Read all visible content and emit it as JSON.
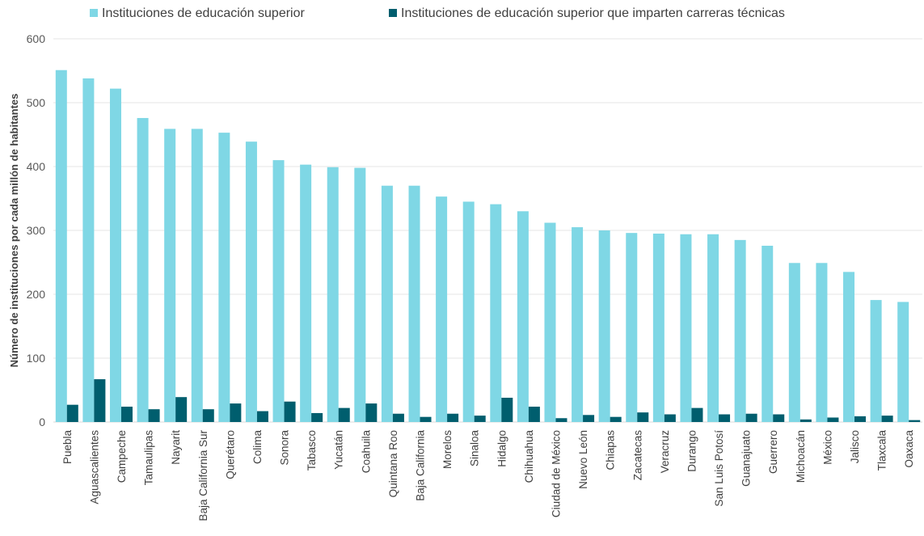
{
  "chart_data": {
    "type": "bar",
    "title": "",
    "xlabel": "",
    "ylabel": "Número de instituciones por cada millón de habitantes",
    "ylim": [
      0,
      600
    ],
    "yticks": [
      0,
      100,
      200,
      300,
      400,
      500,
      600
    ],
    "grid": true,
    "legend_position": "top",
    "categories": [
      "Puebla",
      "Aguascalientes",
      "Campeche",
      "Tamaulipas",
      "Nayarit",
      "Baja California Sur",
      "Querétaro",
      "Colima",
      "Sonora",
      "Tabasco",
      "Yucatán",
      "Coahuila",
      "Quintana Roo",
      "Baja California",
      "Morelos",
      "Sinaloa",
      "Hidalgo",
      "Chihuahua",
      "Ciudad de México",
      "Nuevo León",
      "Chiapas",
      "Zacatecas",
      "Veracruz",
      "Durango",
      "San Luis Potosí",
      "Guanajuato",
      "Guerrero",
      "Michoacán",
      "México",
      "Jalisco",
      "Tlaxcala",
      "Oaxaca"
    ],
    "series": [
      {
        "name": "Instituciones de educación superior",
        "color": "#7fd7e5",
        "values": [
          551,
          538,
          522,
          476,
          459,
          459,
          453,
          439,
          410,
          403,
          399,
          398,
          370,
          370,
          353,
          345,
          341,
          330,
          312,
          305,
          300,
          296,
          295,
          294,
          294,
          285,
          276,
          249,
          249,
          235,
          191,
          188
        ]
      },
      {
        "name": "Instituciones de educación superior que imparten carreras técnicas",
        "color": "#005e6e",
        "values": [
          27,
          67,
          24,
          20,
          39,
          20,
          29,
          17,
          32,
          14,
          22,
          29,
          13,
          8,
          13,
          10,
          38,
          24,
          6,
          11,
          8,
          15,
          12,
          22,
          12,
          13,
          12,
          4,
          7,
          9,
          10,
          3
        ]
      }
    ]
  }
}
